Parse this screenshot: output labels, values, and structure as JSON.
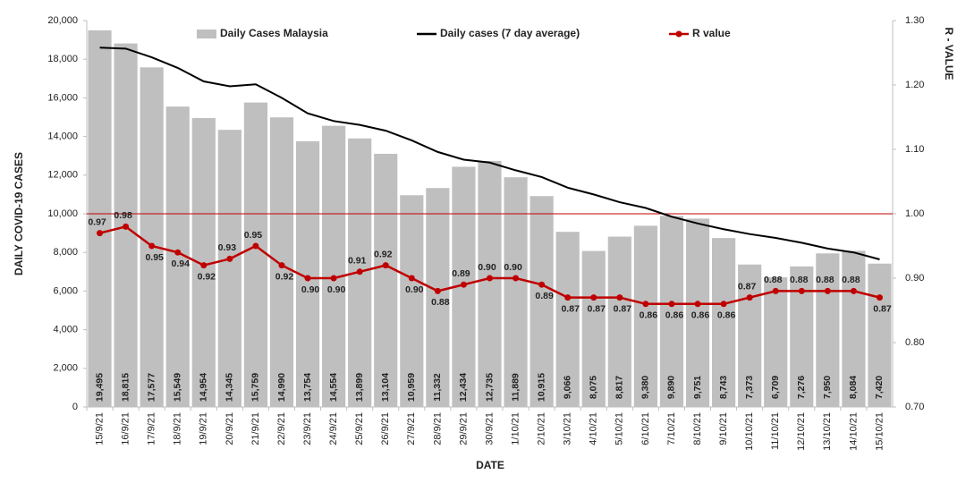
{
  "chart_data": {
    "type": "bar",
    "x_label": "DATE",
    "y_label": "DAILY COVID-19 CASES",
    "y2_label": "R - VALUE",
    "categories": [
      "15/9/21",
      "16/9/21",
      "17/9/21",
      "18/9/21",
      "19/9/21",
      "20/9/21",
      "21/9/21",
      "22/9/21",
      "23/9/21",
      "24/9/21",
      "25/9/21",
      "26/9/21",
      "27/9/21",
      "28/9/21",
      "29/9/21",
      "30/9/21",
      "1/10/21",
      "2/10/21",
      "3/10/21",
      "4/10/21",
      "5/10/21",
      "6/10/21",
      "7/10/21",
      "8/10/21",
      "9/10/21",
      "10/10/21",
      "11/10/21",
      "12/10/21",
      "13/10/21",
      "14/10/21",
      "15/10/21"
    ],
    "series": [
      {
        "name": "Daily Cases Malaysia",
        "type": "bar",
        "color": "#bfbfbf",
        "values": [
          19495,
          18815,
          17577,
          15549,
          14954,
          14345,
          15759,
          14990,
          13754,
          14554,
          13899,
          13104,
          10959,
          11332,
          12434,
          12735,
          11889,
          10915,
          9066,
          8075,
          8817,
          9380,
          9890,
          9751,
          8743,
          7373,
          6709,
          7276,
          7950,
          8084,
          7420
        ],
        "value_labels": [
          "19,495",
          "18,815",
          "17,577",
          "15,549",
          "14,954",
          "14,345",
          "15,759",
          "14,990",
          "13,754",
          "14,554",
          "13,899",
          "13,104",
          "10,959",
          "11,332",
          "12,434",
          "12,735",
          "11,889",
          "10,915",
          "9,066",
          "8,075",
          "8,817",
          "9,380",
          "9,890",
          "9,751",
          "8,743",
          "7,373",
          "6,709",
          "7,276",
          "7,950",
          "8,084",
          "7,420"
        ]
      },
      {
        "name": "Daily cases (7 day average)",
        "type": "line",
        "color": "#000000",
        "values": [
          18600,
          18550,
          18100,
          17550,
          16850,
          16600,
          16700,
          16000,
          15200,
          14800,
          14600,
          14300,
          13800,
          13200,
          12800,
          12650,
          12250,
          11900,
          11350,
          11000,
          10600,
          10300,
          9850,
          9500,
          9200,
          8950,
          8750,
          8500,
          8200,
          8000,
          7640
        ]
      },
      {
        "name": "R value",
        "type": "line",
        "color": "#c00000",
        "axis": "y2",
        "markers": true,
        "values": [
          0.97,
          0.98,
          0.95,
          0.94,
          0.92,
          0.93,
          0.95,
          0.92,
          0.9,
          0.9,
          0.91,
          0.92,
          0.9,
          0.88,
          0.89,
          0.9,
          0.9,
          0.89,
          0.87,
          0.87,
          0.87,
          0.86,
          0.86,
          0.86,
          0.86,
          0.87,
          0.88,
          0.88,
          0.88,
          0.88,
          0.87
        ],
        "value_labels": [
          "0.97",
          "0.98",
          "0.95",
          "0.94",
          "0.92",
          "0.93",
          "0.95",
          "0.92",
          "0.90",
          "0.90",
          "0.91",
          "0.92",
          "0.90",
          "0.88",
          "0.89",
          "0.90",
          "0.90",
          "0.89",
          "0.87",
          "0.87",
          "0.87",
          "0.86",
          "0.86",
          "0.86",
          "0.86",
          "0.87",
          "0.88",
          "0.88",
          "0.88",
          "0.88",
          "0.87"
        ]
      }
    ],
    "ylim": [
      0,
      20000
    ],
    "yticks": [
      0,
      {
        "value": 2000,
        "label": "2,000"
      },
      {
        "value": 4000,
        "label": "4,000"
      },
      {
        "value": 6000,
        "label": "6,000"
      },
      {
        "value": 8000,
        "label": "8,000"
      },
      {
        "value": 10000,
        "label": "10,000"
      },
      {
        "value": 12000,
        "label": "12,000"
      },
      {
        "value": 14000,
        "label": "14,000"
      },
      {
        "value": 16000,
        "label": "16,000"
      },
      {
        "value": 18000,
        "label": "18,000"
      },
      {
        "value": 20000,
        "label": "20,000"
      }
    ],
    "y2lim": [
      0.7,
      1.3
    ],
    "y2ticks": [
      {
        "value": 0.7,
        "label": "0.70"
      },
      {
        "value": 0.8,
        "label": "0.80"
      },
      {
        "value": 0.9,
        "label": "0.90"
      },
      {
        "value": 1.0,
        "label": "1.00"
      },
      {
        "value": 1.1,
        "label": "1.10"
      },
      {
        "value": 1.2,
        "label": "1.20"
      },
      {
        "value": 1.3,
        "label": "1.30"
      }
    ],
    "reference_lines": [
      {
        "axis": "y2",
        "value": 1.0,
        "color": "#c00000"
      }
    ],
    "legend": "top",
    "grid": false
  }
}
